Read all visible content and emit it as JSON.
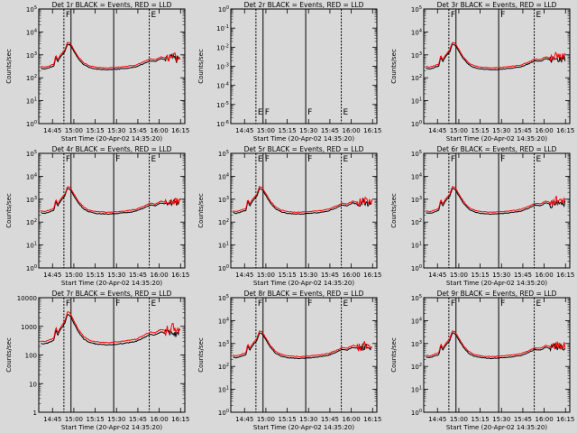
{
  "figure": {
    "background": "#d9d9d9",
    "xticks": [
      "14:45",
      "15:00",
      "15:15",
      "15:30",
      "15:45",
      "16:00",
      "16:15"
    ],
    "xlabel": "Start Time (20-Apr-02 14:35:20)",
    "ylabel": "Counts/sec",
    "events_color": "#000000",
    "lld_color": "#ff0000"
  },
  "chart_data": [
    {
      "type": "line",
      "title": "Det 1r BLACK = Events, RED = LLD",
      "ylabel": "Counts/sec",
      "xlabel": "Start Time (20-Apr-02 14:35:20)",
      "yscale": "log",
      "ylim": [
        1,
        100000
      ],
      "ytick_labels": [
        "10^0",
        "10^1",
        "10^2",
        "10^3",
        "10^4",
        "10^5"
      ],
      "markers": [
        {
          "t": "14:53",
          "label": "F"
        },
        {
          "t": "14:58",
          "label": ""
        },
        {
          "t": "15:28",
          "label": ""
        },
        {
          "t": "15:53",
          "label": "E"
        }
      ],
      "series": [
        {
          "name": "Events",
          "color": "#000000",
          "baseline": 250,
          "peak": 3000
        },
        {
          "name": "LLD",
          "color": "#ff0000",
          "baseline": 300,
          "peak": 3600
        }
      ]
    },
    {
      "type": "line",
      "title": "Det 2r BLACK = Events, RED = LLD",
      "ylabel": "Counts/sec",
      "xlabel": "Start Time (20-Apr-02 14:35:20)",
      "yscale": "log",
      "ylim": [
        1e-06,
        1
      ],
      "ytick_labels": [
        "10^-6",
        "10^-5",
        "10^-4",
        "10^-3",
        "10^-2",
        "10^-1",
        "10^0"
      ],
      "markers": [
        {
          "t": "14:53",
          "label": "E"
        },
        {
          "t": "14:58",
          "label": "F"
        },
        {
          "t": "15:28",
          "label": "F"
        },
        {
          "t": "15:53",
          "label": "E"
        }
      ],
      "series": []
    },
    {
      "type": "line",
      "title": "Det 3r BLACK = Events, RED = LLD",
      "ylabel": "Counts/sec",
      "xlabel": "Start Time (20-Apr-02 14:35:20)",
      "yscale": "log",
      "ylim": [
        1,
        100000
      ],
      "ytick_labels": [
        "10^0",
        "10^1",
        "10^2",
        "10^3",
        "10^4",
        "10^5"
      ],
      "markers": [
        {
          "t": "14:53",
          "label": "F"
        },
        {
          "t": "14:58",
          "label": ""
        },
        {
          "t": "15:28",
          "label": "F"
        },
        {
          "t": "15:53",
          "label": "E"
        }
      ],
      "series": [
        {
          "name": "Events",
          "color": "#000000",
          "baseline": 250,
          "peak": 3000
        },
        {
          "name": "LLD",
          "color": "#ff0000",
          "baseline": 300,
          "peak": 3600
        }
      ]
    },
    {
      "type": "line",
      "title": "Det 4r BLACK = Events, RED = LLD",
      "ylabel": "Counts/sec",
      "xlabel": "Start Time (20-Apr-02 14:35:20)",
      "yscale": "log",
      "ylim": [
        1,
        100000
      ],
      "ytick_labels": [
        "10^0",
        "10^1",
        "10^2",
        "10^3",
        "10^4",
        "10^5"
      ],
      "markers": [
        {
          "t": "14:53",
          "label": "F"
        },
        {
          "t": "14:58",
          "label": ""
        },
        {
          "t": "15:28",
          "label": "F"
        },
        {
          "t": "15:53",
          "label": "E"
        }
      ],
      "series": [
        {
          "name": "Events",
          "color": "#000000",
          "baseline": 250,
          "peak": 3000
        },
        {
          "name": "LLD",
          "color": "#ff0000",
          "baseline": 300,
          "peak": 3600
        }
      ]
    },
    {
      "type": "line",
      "title": "Det 5r BLACK = Events, RED = LLD",
      "ylabel": "Counts/sec",
      "xlabel": "Start Time (20-Apr-02 14:35:20)",
      "yscale": "log",
      "ylim": [
        1,
        100000
      ],
      "ytick_labels": [
        "10^0",
        "10^1",
        "10^2",
        "10^3",
        "10^4",
        "10^5"
      ],
      "markers": [
        {
          "t": "14:53",
          "label": "E"
        },
        {
          "t": "14:58",
          "label": "F"
        },
        {
          "t": "15:28",
          "label": "F"
        },
        {
          "t": "15:53",
          "label": "E"
        }
      ],
      "series": [
        {
          "name": "Events",
          "color": "#000000",
          "baseline": 250,
          "peak": 3000
        },
        {
          "name": "LLD",
          "color": "#ff0000",
          "baseline": 300,
          "peak": 3600
        }
      ]
    },
    {
      "type": "line",
      "title": "Det 6r BLACK = Events, RED = LLD",
      "ylabel": "Counts/sec",
      "xlabel": "Start Time (20-Apr-02 14:35:20)",
      "yscale": "log",
      "ylim": [
        1,
        100000
      ],
      "ytick_labels": [
        "10^0",
        "10^1",
        "10^2",
        "10^3",
        "10^4",
        "10^5"
      ],
      "markers": [
        {
          "t": "14:53",
          "label": "F"
        },
        {
          "t": "14:58",
          "label": ""
        },
        {
          "t": "15:28",
          "label": "F"
        },
        {
          "t": "15:53",
          "label": "E"
        }
      ],
      "series": [
        {
          "name": "Events",
          "color": "#000000",
          "baseline": 250,
          "peak": 3000
        },
        {
          "name": "LLD",
          "color": "#ff0000",
          "baseline": 300,
          "peak": 3600
        }
      ]
    },
    {
      "type": "line",
      "title": "Det 7r BLACK = Events, RED = LLD",
      "ylabel": "Counts/sec",
      "xlabel": "Start Time (20-Apr-02 14:35:20)",
      "yscale": "log",
      "ylim": [
        1,
        10000
      ],
      "ytick_labels": [
        "1",
        "10",
        "100",
        "1000",
        "10000"
      ],
      "markers": [
        {
          "t": "14:53",
          "label": "F"
        },
        {
          "t": "14:58",
          "label": ""
        },
        {
          "t": "15:28",
          "label": "F"
        },
        {
          "t": "15:53",
          "label": "E"
        }
      ],
      "series": [
        {
          "name": "Events",
          "color": "#000000",
          "baseline": 250,
          "peak": 2600
        },
        {
          "name": "LLD",
          "color": "#ff0000",
          "baseline": 300,
          "peak": 3200
        }
      ]
    },
    {
      "type": "line",
      "title": "Det 8r BLACK = Events, RED = LLD",
      "ylabel": "Counts/sec",
      "xlabel": "Start Time (20-Apr-02 14:35:20)",
      "yscale": "log",
      "ylim": [
        1,
        100000
      ],
      "ytick_labels": [
        "10^0",
        "10^1",
        "10^2",
        "10^3",
        "10^4",
        "10^5"
      ],
      "markers": [
        {
          "t": "14:53",
          "label": "F"
        },
        {
          "t": "14:58",
          "label": ""
        },
        {
          "t": "15:28",
          "label": "F"
        },
        {
          "t": "15:53",
          "label": "E"
        }
      ],
      "series": [
        {
          "name": "Events",
          "color": "#000000",
          "baseline": 250,
          "peak": 3000
        },
        {
          "name": "LLD",
          "color": "#ff0000",
          "baseline": 300,
          "peak": 3600
        }
      ]
    },
    {
      "type": "line",
      "title": "Det 9r BLACK = Events, RED = LLD",
      "ylabel": "Counts/sec",
      "xlabel": "Start Time (20-Apr-02 14:35:20)",
      "yscale": "log",
      "ylim": [
        1,
        100000
      ],
      "ytick_labels": [
        "10^0",
        "10^1",
        "10^2",
        "10^3",
        "10^4",
        "10^5"
      ],
      "markers": [
        {
          "t": "14:53",
          "label": "F"
        },
        {
          "t": "14:58",
          "label": ""
        },
        {
          "t": "15:28",
          "label": "F"
        },
        {
          "t": "15:53",
          "label": "E"
        }
      ],
      "series": [
        {
          "name": "Events",
          "color": "#000000",
          "baseline": 250,
          "peak": 3000
        },
        {
          "name": "LLD",
          "color": "#ff0000",
          "baseline": 300,
          "peak": 3600
        }
      ]
    }
  ]
}
